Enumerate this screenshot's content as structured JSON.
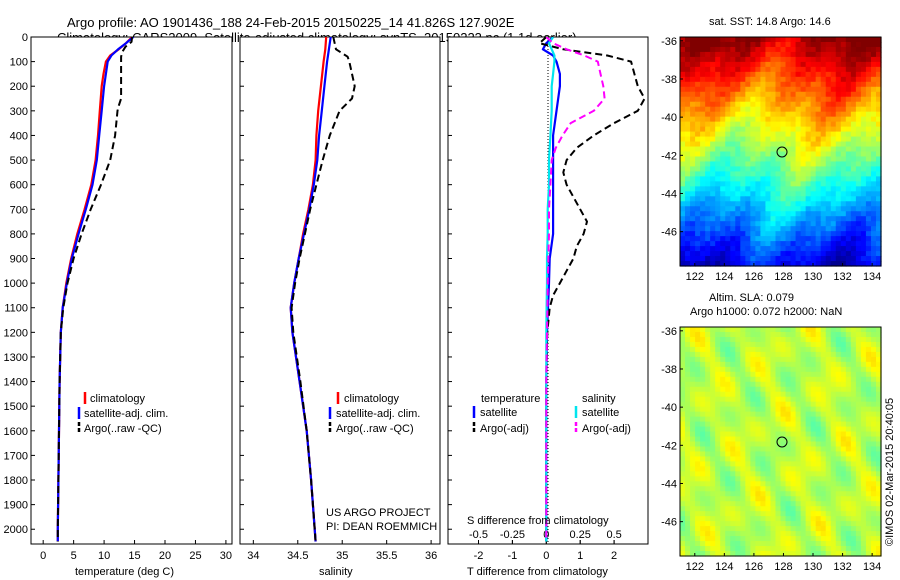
{
  "header": {
    "line1": "Argo profile: AO 1901436_188 24-Feb-2015 20150225_14 41.826S 127.902E",
    "line2": "Climatology: CARS2009. Satellite-adjusted climatology: synTS_20150223.nc (1.1d earlier)"
  },
  "colors": {
    "climatology": "#ff0000",
    "satellite": "#0000ff",
    "argo": "#000000",
    "s_satellite": "#00e5ee",
    "s_argo": "#ff00ff"
  },
  "credits": {
    "project": "US ARGO PROJECT",
    "pi": "PI: DEAN ROEMMICH",
    "imos": "©IMOS 02-Mar-2015 20:40:05"
  },
  "chart_data": [
    {
      "type": "line",
      "panel": "temperature",
      "xlabel": "temperature (deg C)",
      "xlim": [
        -2,
        31
      ],
      "xticks": [
        "0",
        "5",
        "10",
        "15",
        "20",
        "25",
        "30"
      ],
      "ylim": [
        0,
        2060
      ],
      "yticks": [
        "0",
        "100",
        "200",
        "300",
        "400",
        "500",
        "600",
        "700",
        "800",
        "900",
        "1000",
        "1100",
        "1200",
        "1300",
        "1400",
        "1500",
        "1600",
        "1700",
        "1800",
        "1900",
        "2000"
      ],
      "legend": {
        "position": "bottom-right",
        "entries": [
          "climatology",
          "satellite-adj. clim.",
          "Argo(..raw -QC)"
        ]
      },
      "series": [
        {
          "name": "climatology",
          "depth": [
            0,
            25,
            50,
            75,
            100,
            150,
            200,
            300,
            400,
            500,
            600,
            700,
            800,
            900,
            1000,
            1100,
            1200,
            1400,
            1600,
            1800,
            2000,
            2050
          ],
          "values": [
            14.6,
            13.6,
            12.4,
            11.0,
            10.3,
            9.9,
            9.6,
            9.3,
            9.0,
            8.6,
            7.9,
            6.8,
            5.6,
            4.6,
            3.8,
            3.2,
            2.9,
            2.7,
            2.6,
            2.5,
            2.4,
            2.4
          ]
        },
        {
          "name": "satellite-adj. clim.",
          "depth": [
            0,
            25,
            50,
            75,
            100,
            150,
            200,
            300,
            400,
            500,
            600,
            700,
            800,
            900,
            1000,
            1100,
            1200,
            1400,
            1600,
            1800,
            2000,
            2050
          ],
          "values": [
            14.8,
            13.6,
            12.3,
            11.2,
            10.6,
            10.3,
            10.0,
            9.6,
            9.2,
            8.8,
            8.1,
            7.0,
            5.8,
            4.7,
            3.9,
            3.2,
            2.9,
            2.7,
            2.6,
            2.5,
            2.4,
            2.4
          ]
        },
        {
          "name": "Argo(..raw -QC)",
          "depth": [
            0,
            20,
            40,
            60,
            80,
            110,
            150,
            200,
            250,
            280,
            300,
            400,
            500,
            600,
            700,
            800,
            900,
            1000,
            1100,
            1200,
            1400,
            1600,
            1800,
            2000,
            2050
          ],
          "values": [
            14.6,
            14.5,
            13.5,
            13.0,
            12.8,
            12.8,
            12.8,
            12.8,
            12.8,
            12.4,
            12.2,
            11.8,
            11.0,
            9.5,
            7.8,
            6.3,
            5.0,
            4.0,
            3.3,
            2.9,
            2.7,
            2.6,
            2.5,
            2.4,
            2.4
          ]
        }
      ]
    },
    {
      "type": "line",
      "panel": "salinity",
      "xlabel": "salinity",
      "xlim": [
        33.85,
        36.1
      ],
      "xticks": [
        "34",
        "34.5",
        "35",
        "35.5",
        "36"
      ],
      "ylim": [
        0,
        2060
      ],
      "legend": {
        "position": "bottom-right",
        "entries": [
          "climatology",
          "satellite-adj. clim.",
          "Argo(..raw -QC)"
        ]
      },
      "series": [
        {
          "name": "climatology",
          "depth": [
            0,
            50,
            100,
            200,
            300,
            400,
            500,
            600,
            700,
            800,
            900,
            1000,
            1100,
            1200,
            1400,
            1600,
            1800,
            2000,
            2050
          ],
          "values": [
            34.82,
            34.81,
            34.79,
            34.76,
            34.73,
            34.71,
            34.7,
            34.67,
            34.62,
            34.56,
            34.51,
            34.46,
            34.42,
            34.44,
            34.52,
            34.6,
            34.65,
            34.69,
            34.7
          ]
        },
        {
          "name": "satellite-adj. clim.",
          "depth": [
            0,
            50,
            100,
            200,
            300,
            400,
            500,
            600,
            700,
            800,
            900,
            1000,
            1100,
            1200,
            1400,
            1600,
            1800,
            2000,
            2050
          ],
          "values": [
            34.87,
            34.85,
            34.83,
            34.8,
            34.77,
            34.74,
            34.72,
            34.68,
            34.63,
            34.57,
            34.51,
            34.46,
            34.42,
            34.44,
            34.52,
            34.6,
            34.65,
            34.69,
            34.7
          ]
        },
        {
          "name": "Argo(..raw -QC)",
          "depth": [
            0,
            50,
            80,
            100,
            150,
            200,
            250,
            300,
            400,
            500,
            600,
            700,
            800,
            900,
            1000,
            1100,
            1200,
            1400,
            1600,
            1800,
            2000,
            2050
          ],
          "values": [
            34.9,
            34.93,
            35.06,
            35.08,
            35.11,
            35.14,
            35.11,
            34.97,
            34.86,
            34.78,
            34.71,
            34.64,
            34.58,
            34.52,
            34.47,
            34.43,
            34.45,
            34.53,
            34.6,
            34.65,
            34.69,
            34.7
          ]
        }
      ]
    },
    {
      "type": "line",
      "panel": "differences",
      "xlabel": "T difference from climatology",
      "xlim": [
        -2.9,
        3.0
      ],
      "xticks": [
        "-2",
        "-1",
        "0",
        "1",
        "2"
      ],
      "x2label": "S difference from climatology",
      "x2ticks": [
        "-0.5",
        "-0.25",
        "0",
        "0.25",
        "0.5"
      ],
      "ylim": [
        0,
        2060
      ],
      "legend": {
        "position": "bottom",
        "temperature_title": "temperature",
        "salinity_title": "salinity",
        "entries": [
          "satellite",
          "Argo(-adj)",
          "satellite",
          "Argo(-adj)"
        ]
      },
      "series": [
        {
          "name": "satellite",
          "variable": "temperature",
          "depth": [
            0,
            25,
            50,
            75,
            100,
            150,
            200,
            250,
            300,
            400,
            500,
            600,
            700,
            800,
            900,
            1000,
            1100,
            1200,
            1400,
            1600,
            1800,
            2000,
            2050
          ],
          "values": [
            0.2,
            0,
            -0.1,
            0.2,
            0.3,
            0.4,
            0.4,
            0.35,
            0.3,
            0.2,
            0.2,
            0.2,
            0.2,
            0.2,
            0.1,
            0.08,
            0.05,
            0.02,
            0,
            0,
            0,
            0,
            0
          ]
        },
        {
          "name": "Argo(-adj)",
          "variable": "temperature",
          "depth": [
            0,
            25,
            50,
            75,
            100,
            150,
            200,
            250,
            300,
            350,
            400,
            450,
            500,
            550,
            600,
            650,
            700,
            750,
            800,
            850,
            900,
            950,
            1000,
            1050,
            1100,
            1200,
            1400,
            1600,
            1800,
            2000,
            2050
          ],
          "values": [
            0,
            -0.2,
            0.5,
            1.8,
            2.5,
            2.6,
            2.7,
            2.9,
            2.7,
            2.0,
            1.4,
            0.9,
            0.6,
            0.5,
            0.6,
            0.8,
            1.0,
            1.2,
            1.1,
            0.9,
            0.8,
            0.6,
            0.4,
            0.2,
            0.1,
            0.03,
            0,
            0,
            0,
            0,
            0
          ]
        },
        {
          "name": "satellite",
          "variable": "salinity",
          "depth": [
            0,
            25,
            50,
            75,
            100,
            150,
            200,
            300,
            400,
            500,
            600,
            700,
            800,
            900,
            1000,
            1100,
            1200,
            1400,
            1600,
            1800,
            2000,
            2050
          ],
          "values": [
            0.05,
            0.02,
            0.04,
            0.06,
            0.06,
            0.05,
            0.04,
            0.04,
            0.03,
            0.02,
            0.02,
            0.01,
            0.01,
            0.005,
            0.005,
            0.002,
            0,
            0,
            0,
            0,
            0,
            0
          ]
        },
        {
          "name": "Argo(-adj)",
          "variable": "salinity",
          "depth": [
            0,
            25,
            50,
            75,
            100,
            150,
            200,
            250,
            300,
            350,
            400,
            450,
            500,
            600,
            700,
            800,
            900,
            1000,
            1100,
            1200,
            1400,
            1600,
            1800,
            2000,
            2050
          ],
          "values": [
            0,
            0.05,
            0.15,
            0.28,
            0.38,
            0.4,
            0.42,
            0.43,
            0.35,
            0.18,
            0.12,
            0.07,
            0.04,
            0.03,
            0.02,
            0.02,
            0.015,
            0.01,
            0.008,
            0.005,
            0,
            0,
            0,
            0,
            0
          ]
        }
      ]
    },
    {
      "type": "heatmap",
      "panel": "sst_map",
      "title": "sat. SST: 14.8 Argo: 14.6",
      "xticks": [
        "122",
        "124",
        "126",
        "128",
        "130",
        "132",
        "134"
      ],
      "yticks": [
        "-36",
        "-38",
        "-40",
        "-42",
        "-44",
        "-46"
      ],
      "xlim": [
        121,
        134.6
      ],
      "ylim": [
        -47.8,
        -35.8
      ],
      "marker": {
        "lon": 127.902,
        "lat": -41.826
      }
    },
    {
      "type": "heatmap",
      "panel": "sla_map",
      "title_line1": "Altim. SLA: 0.079",
      "title_line2": "Argo h1000: 0.072 h2000: NaN",
      "xticks": [
        "122",
        "124",
        "126",
        "128",
        "130",
        "132",
        "134"
      ],
      "yticks": [
        "-36",
        "-38",
        "-40",
        "-42",
        "-44",
        "-46"
      ],
      "xlim": [
        121,
        134.6
      ],
      "ylim": [
        -47.8,
        -35.8
      ],
      "marker": {
        "lon": 127.902,
        "lat": -41.826
      }
    }
  ]
}
